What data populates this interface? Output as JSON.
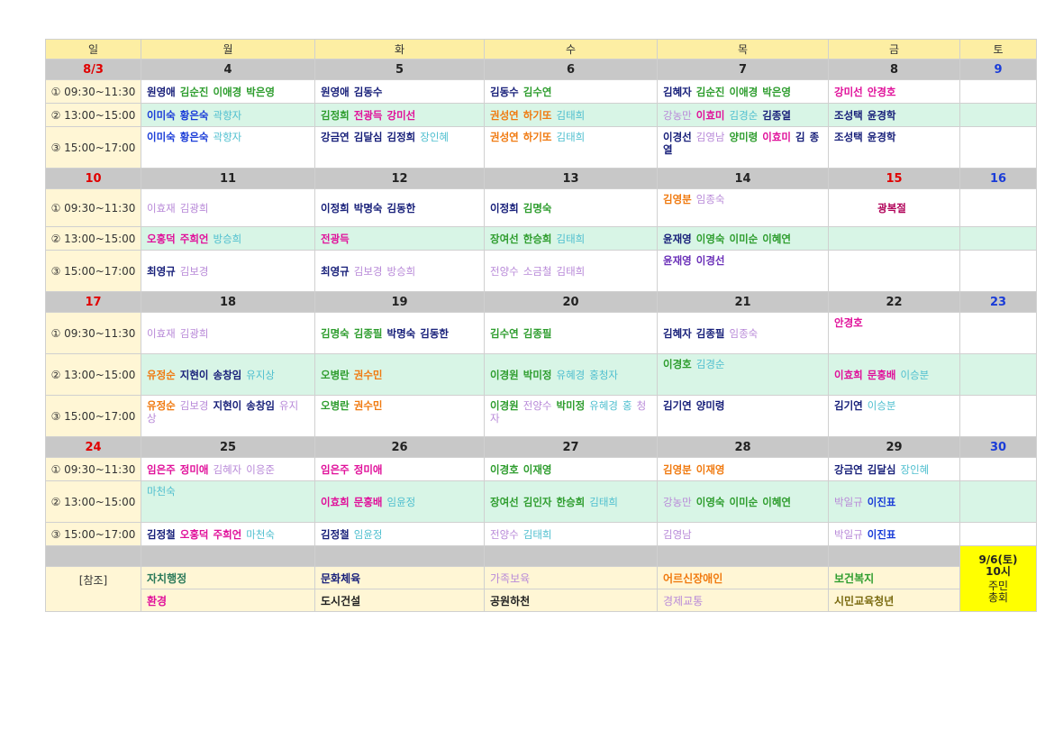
{
  "colors": {
    "k": "#1f1f1f",
    "g": "#2e9d2e",
    "b": "#1a3cd8",
    "n": "#18207a",
    "c": "#4fbfcf",
    "l": "#9a9aa8",
    "o": "#f07a10",
    "p": "#c04ad8",
    "r": "#e0109a",
    "v": "#6a2fb8",
    "lp": "#b889d8",
    "tg": "#2b7a5a",
    "ol": "#7a6a10",
    "dr": "#b00058",
    "pk": "#f06080"
  },
  "weekdays": [
    "일",
    "월",
    "화",
    "수",
    "목",
    "금",
    "토"
  ],
  "weeks": [
    {
      "dates": [
        {
          "t": "8/3",
          "c": "sun"
        },
        {
          "t": "4",
          "c": ""
        },
        {
          "t": "5",
          "c": ""
        },
        {
          "t": "6",
          "c": ""
        },
        {
          "t": "7",
          "c": ""
        },
        {
          "t": "8",
          "c": ""
        },
        {
          "t": "9",
          "c": "sat"
        }
      ],
      "rows": [
        {
          "time": "① 09:30~11:30",
          "bg": "white",
          "cells": [
            [
              [
                "원영애",
                "n"
              ],
              [
                "김순진",
                "g"
              ],
              [
                "이애경",
                "g"
              ],
              [
                "박은영",
                "g"
              ]
            ],
            [
              [
                "원영애",
                "n"
              ],
              [
                "김동수",
                "n"
              ]
            ],
            [
              [
                "김동수",
                "n"
              ],
              [
                "김수연",
                "g"
              ]
            ],
            [
              [
                "김혜자",
                "n"
              ],
              [
                "김순진",
                "g"
              ],
              [
                "이애경",
                "g"
              ],
              [
                "박은영",
                "g"
              ]
            ],
            [
              [
                "강미선",
                "r"
              ],
              [
                "안경호",
                "r"
              ]
            ],
            []
          ]
        },
        {
          "time": "② 13:00~15:00",
          "bg": "mint",
          "cells": [
            [
              [
                "이미숙",
                "b"
              ],
              [
                "황은숙",
                "b"
              ],
              [
                "곽향자",
                "c"
              ]
            ],
            [
              [
                "김정희",
                "g"
              ],
              [
                "전광득",
                "r"
              ],
              [
                "강미선",
                "r"
              ]
            ],
            [
              [
                "권성연",
                "o"
              ],
              [
                "하기또",
                "o"
              ],
              [
                "김태희",
                "c"
              ]
            ],
            [
              [
                "강농만",
                "lp"
              ],
              [
                "이효미",
                "r"
              ],
              [
                "김경순",
                "c"
              ],
              [
                "김종열",
                "n"
              ]
            ],
            [
              [
                "조성택",
                "n"
              ],
              [
                "윤경학",
                "n"
              ]
            ],
            []
          ]
        },
        {
          "time": "③ 15:00~17:00",
          "bg": "white",
          "top": true,
          "cells": [
            [
              [
                "이미숙",
                "b"
              ],
              [
                "황은숙",
                "b"
              ],
              [
                "곽향자",
                "c"
              ]
            ],
            [
              [
                "강금연",
                "n"
              ],
              [
                "김달심",
                "n"
              ],
              [
                "김정희",
                "n"
              ],
              [
                "장인혜",
                "c"
              ]
            ],
            [
              [
                "권성연",
                "o"
              ],
              [
                "하기또",
                "o"
              ],
              [
                "김태희",
                "c"
              ]
            ],
            [
              [
                "이경선",
                "n"
              ],
              [
                "김영남",
                "lp"
              ],
              [
                "양미령",
                "g"
              ],
              [
                "이효미",
                "r"
              ],
              [
                "김",
                "n"
              ],
              [
                "종열",
                "n"
              ]
            ],
            [
              [
                "조성택",
                "n"
              ],
              [
                "윤경학",
                "n"
              ]
            ],
            []
          ]
        }
      ]
    },
    {
      "dates": [
        {
          "t": "10",
          "c": "sun"
        },
        {
          "t": "11",
          "c": ""
        },
        {
          "t": "12",
          "c": ""
        },
        {
          "t": "13",
          "c": ""
        },
        {
          "t": "14",
          "c": ""
        },
        {
          "t": "15",
          "c": "hol"
        },
        {
          "t": "16",
          "c": "sat"
        }
      ],
      "rows": [
        {
          "time": "① 09:30~11:30",
          "bg": "white",
          "cells": [
            [
              [
                "이효재",
                "lp"
              ],
              [
                "김광희",
                "lp"
              ]
            ],
            [
              [
                "이정희",
                "n"
              ],
              [
                "박명숙",
                "n"
              ],
              [
                "김동한",
                "n"
              ]
            ],
            [
              [
                "이정희",
                "n"
              ],
              [
                "김명숙",
                "g"
              ]
            ],
            [
              [
                "김영분",
                "o"
              ],
              [
                "임종숙",
                "lp"
              ]
            ],
            [
              [
                "광복절",
                "dr"
              ]
            ],
            []
          ],
          "center": [
            false,
            false,
            false,
            false,
            true,
            false
          ],
          "topcells": [
            false,
            false,
            false,
            true,
            false,
            false
          ]
        },
        {
          "time": "② 13:00~15:00",
          "bg": "mint",
          "cells": [
            [
              [
                "오홍덕",
                "r"
              ],
              [
                "주희언",
                "r"
              ],
              [
                "방승희",
                "c"
              ]
            ],
            [
              [
                "전광득",
                "r"
              ]
            ],
            [
              [
                "장여선",
                "g"
              ],
              [
                "한승희",
                "g"
              ],
              [
                "김태희",
                "c"
              ]
            ],
            [
              [
                "윤재영",
                "n"
              ],
              [
                "이영숙",
                "g"
              ],
              [
                "이미순",
                "g"
              ],
              [
                "이혜연",
                "g"
              ]
            ],
            [],
            []
          ]
        },
        {
          "time": "③ 15:00~17:00",
          "bg": "white",
          "cells": [
            [
              [
                "최영규",
                "n"
              ],
              [
                "김보경",
                "lp"
              ]
            ],
            [
              [
                "최영규",
                "n"
              ],
              [
                "김보경",
                "lp"
              ],
              [
                "방승희",
                "lp"
              ]
            ],
            [
              [
                "전양수",
                "lp"
              ],
              [
                "소금철",
                "lp"
              ],
              [
                "김태희",
                "lp"
              ]
            ],
            [
              [
                "윤재영",
                "v"
              ],
              [
                "이경선",
                "v"
              ]
            ],
            [],
            []
          ],
          "topcells": [
            false,
            false,
            false,
            true,
            false,
            false
          ]
        }
      ]
    },
    {
      "dates": [
        {
          "t": "17",
          "c": "sun"
        },
        {
          "t": "18",
          "c": ""
        },
        {
          "t": "19",
          "c": ""
        },
        {
          "t": "20",
          "c": ""
        },
        {
          "t": "21",
          "c": ""
        },
        {
          "t": "22",
          "c": ""
        },
        {
          "t": "23",
          "c": "sat"
        }
      ],
      "rows": [
        {
          "time": "① 09:30~11:30",
          "bg": "white",
          "cells": [
            [
              [
                "이효재",
                "lp"
              ],
              [
                "김광희",
                "lp"
              ]
            ],
            [
              [
                "김명숙",
                "g"
              ],
              [
                "김종필",
                "g"
              ],
              [
                "박명숙",
                "n"
              ],
              [
                "김동한",
                "n"
              ]
            ],
            [
              [
                "김수연",
                "g"
              ],
              [
                "김종필",
                "g"
              ]
            ],
            [
              [
                "김혜자",
                "n"
              ],
              [
                "김종필",
                "n"
              ],
              [
                "임종숙",
                "lp"
              ]
            ],
            [
              [
                "안경호",
                "r"
              ]
            ],
            []
          ],
          "topcells": [
            false,
            false,
            false,
            false,
            true,
            false
          ]
        },
        {
          "time": "② 13:00~15:00",
          "bg": "mint",
          "cells": [
            [
              [
                "유정순",
                "o"
              ],
              [
                "지현이",
                "n"
              ],
              [
                "송창임",
                "n"
              ],
              [
                "유지상",
                "c"
              ]
            ],
            [
              [
                "오병란",
                "g"
              ],
              [
                "권수민",
                "o"
              ]
            ],
            [
              [
                "이경원",
                "g"
              ],
              [
                "박미정",
                "g"
              ],
              [
                "유혜경",
                "c"
              ],
              [
                "홍청자",
                "c"
              ]
            ],
            [
              [
                "이경호",
                "g"
              ],
              [
                "김경순",
                "c"
              ]
            ],
            [
              [
                "이효희",
                "r"
              ],
              [
                "문홍배",
                "r"
              ],
              [
                "이승분",
                "c"
              ]
            ],
            []
          ],
          "topcells": [
            false,
            false,
            false,
            true,
            false,
            false
          ]
        },
        {
          "time": "③ 15:00~17:00",
          "bg": "white",
          "cells": [
            [
              [
                "유정순",
                "o"
              ],
              [
                "김보경",
                "lp"
              ],
              [
                "지현이",
                "n"
              ],
              [
                "송창임",
                "n"
              ],
              [
                "유지상",
                "lp"
              ]
            ],
            [
              [
                "오병란",
                "g"
              ],
              [
                "권수민",
                "o"
              ]
            ],
            [
              [
                "이경원",
                "g"
              ],
              [
                "전양수",
                "lp"
              ],
              [
                "박미정",
                "g"
              ],
              [
                "유혜경",
                "c"
              ],
              [
                "홍",
                "c"
              ],
              [
                "청자",
                "lp"
              ]
            ],
            [
              [
                "김기연",
                "n"
              ],
              [
                "양미령",
                "n"
              ]
            ],
            [
              [
                "김기연",
                "n"
              ],
              [
                "이승분",
                "c"
              ]
            ],
            []
          ],
          "top": true
        }
      ]
    },
    {
      "dates": [
        {
          "t": "24",
          "c": "sun"
        },
        {
          "t": "25",
          "c": ""
        },
        {
          "t": "26",
          "c": ""
        },
        {
          "t": "27",
          "c": ""
        },
        {
          "t": "28",
          "c": ""
        },
        {
          "t": "29",
          "c": ""
        },
        {
          "t": "30",
          "c": "sat"
        }
      ],
      "rows": [
        {
          "time": "① 09:30~11:30",
          "bg": "white",
          "cells": [
            [
              [
                "임은주",
                "r"
              ],
              [
                "정미애",
                "r"
              ],
              [
                "김혜자",
                "lp"
              ],
              [
                "이응준",
                "lp"
              ]
            ],
            [
              [
                "임은주",
                "r"
              ],
              [
                "정미애",
                "r"
              ]
            ],
            [
              [
                "이경호",
                "g"
              ],
              [
                "이재영",
                "g"
              ]
            ],
            [
              [
                "김영분",
                "o"
              ],
              [
                "이재영",
                "o"
              ]
            ],
            [
              [
                "강금연",
                "n"
              ],
              [
                "김달심",
                "n"
              ],
              [
                "장인혜",
                "c"
              ]
            ],
            []
          ]
        },
        {
          "time": "② 13:00~15:00",
          "bg": "mint",
          "cells": [
            [
              [
                "마천숙",
                "c"
              ]
            ],
            [
              [
                "이효희",
                "r"
              ],
              [
                "문홍배",
                "r"
              ],
              [
                "임윤정",
                "c"
              ]
            ],
            [
              [
                "장여선",
                "g"
              ],
              [
                "김인자",
                "g"
              ],
              [
                "한승희",
                "g"
              ],
              [
                "김태희",
                "c"
              ]
            ],
            [
              [
                "강농만",
                "lp"
              ],
              [
                "이영숙",
                "g"
              ],
              [
                "이미순",
                "g"
              ],
              [
                "이혜연",
                "g"
              ]
            ],
            [
              [
                "박일규",
                "lp"
              ],
              [
                "이진표",
                "b"
              ]
            ],
            []
          ],
          "topcells": [
            true,
            false,
            false,
            false,
            false,
            false
          ]
        },
        {
          "time": "③ 15:00~17:00",
          "bg": "white",
          "cells": [
            [
              [
                "김정철",
                "n"
              ],
              [
                "오홍덕",
                "r"
              ],
              [
                "주희언",
                "r"
              ],
              [
                "마천숙",
                "c"
              ]
            ],
            [
              [
                "김정철",
                "n"
              ],
              [
                "임윤정",
                "c"
              ]
            ],
            [
              [
                "전양수",
                "lp"
              ],
              [
                "김태희",
                "c"
              ]
            ],
            [
              [
                "김영남",
                "lp"
              ]
            ],
            [
              [
                "박일규",
                "lp"
              ],
              [
                "이진표",
                "b"
              ]
            ],
            []
          ]
        }
      ]
    }
  ],
  "notice": {
    "line1": "9/6(토)",
    "line2": "10시",
    "line3": "주민",
    "line4": "총회"
  },
  "reference": {
    "label": "[참조]",
    "row1": [
      [
        "자치행정",
        "tg"
      ],
      [
        "문화체육",
        "n"
      ],
      [
        "가족보육",
        "lp"
      ],
      [
        "어르신장애인",
        "o"
      ],
      [
        "보건복지",
        "g"
      ]
    ],
    "row2": [
      [
        "환경",
        "r"
      ],
      [
        "도시건설",
        "k"
      ],
      [
        "공원하천",
        "k"
      ],
      [
        "경제교통",
        "lp"
      ],
      [
        "시민교육청년",
        "ol"
      ]
    ]
  }
}
